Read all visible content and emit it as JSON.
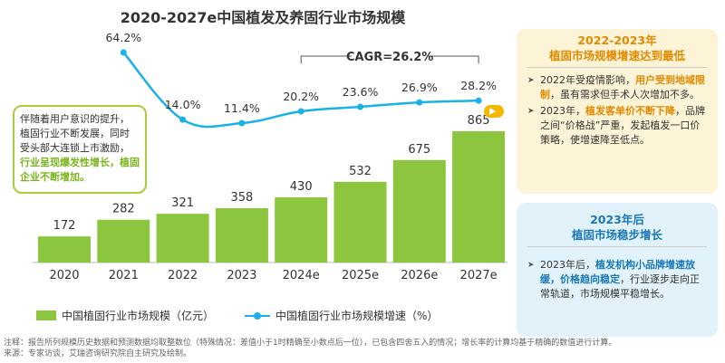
{
  "chart_data": {
    "type": "bar+line",
    "title": "2020-2027e中国植发及养固行业市场规模",
    "categories": [
      "2020",
      "2021",
      "2022",
      "2023",
      "2024e",
      "2025e",
      "2026e",
      "2027e"
    ],
    "series": [
      {
        "name": "中国植固行业市场规模（亿元）",
        "type": "bar",
        "values": [
          172,
          282,
          321,
          358,
          430,
          532,
          675,
          865
        ],
        "color": "#8cc63e"
      },
      {
        "name": "中国植固行业市场规模增速（%）",
        "type": "line",
        "values": [
          null,
          64.2,
          14.0,
          11.4,
          20.2,
          23.6,
          26.9,
          28.2
        ],
        "labels": [
          "",
          "64.2%",
          "14.0%",
          "11.4%",
          "20.2%",
          "23.6%",
          "26.9%",
          "28.2%"
        ],
        "color": "#1ab0e8"
      }
    ],
    "cagr_label": "CAGR=26.2%"
  },
  "callout": {
    "line1": "伴随着用户意识的提升，",
    "line2": "植固行业不断发展，同时",
    "line3": "受头部大连锁上市激励，",
    "highlight": "行业呈现爆发性增长，植固企业不断增加。"
  },
  "panel1": {
    "title1": "2022-2023年",
    "title2": "植固市场规模增速达到最低",
    "items": [
      {
        "pre": "2022年受疫情影响，",
        "hl": "用户受到地域限制",
        "post": "，虽有需求但手术人次增加不多。"
      },
      {
        "pre": "2023年，",
        "hl": "植发客单价不断下降",
        "post": "，品牌之间“价格战”严重，发起植发一口价策略，使增速降至低点。"
      }
    ]
  },
  "panel2": {
    "title1": "2023年后",
    "title2": "植固市场稳步增长",
    "items": [
      {
        "pre": "2023年后，",
        "hl": "植发机构小品牌增速放缓，价格趋向稳定",
        "post": "，行业逐步走向正常轨道，市场规模平稳增长。"
      }
    ]
  },
  "notes": {
    "line1": "注释：报告所列规模历史数据和预测数据均取整数位（特殊情况：差值小于1时精确至小数点后一位），已包含四舍五入的情况；增长率的计算均基于精确的数值进行计算。",
    "line2": "来源：专家访谈，艾瑞咨询研究院自主研究及绘制。"
  },
  "colors": {
    "bar": "#8cc63e",
    "line": "#1ab0e8",
    "accent_orange": "#e08a00",
    "accent_blue": "#1a78b8"
  }
}
